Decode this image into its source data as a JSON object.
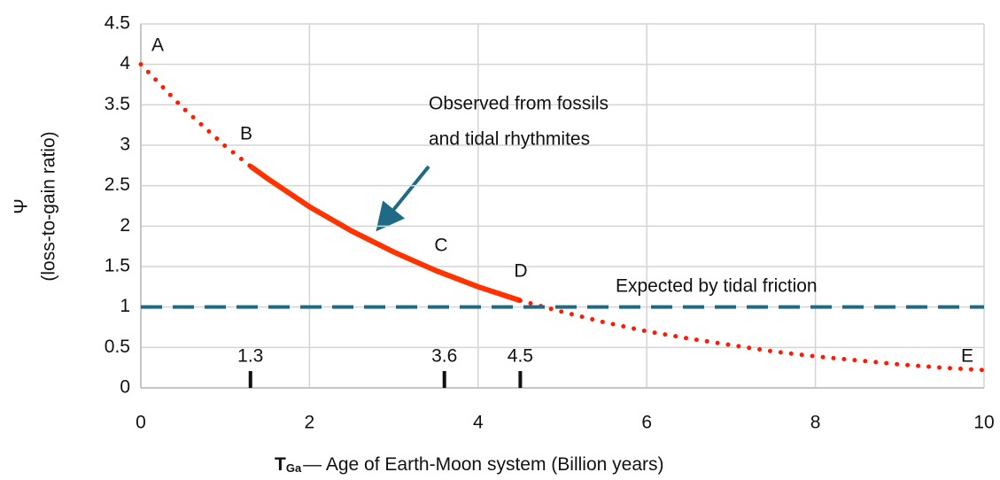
{
  "chart_data": {
    "type": "line",
    "y_label": {
      "symbol": "Ψ",
      "text": "(loss-to-gain ratio)"
    },
    "x_label": {
      "symbol": "T",
      "subscript": "Ga",
      "text": "— Age of Earth-Moon system (Billion years)"
    },
    "xlim": [
      0,
      10
    ],
    "xticks": [
      0,
      2,
      4,
      6,
      8,
      10
    ],
    "ylim": [
      0,
      4.5
    ],
    "yticks": [
      0,
      0.5,
      1,
      1.5,
      2,
      2.5,
      3,
      3.5,
      4,
      4.5
    ],
    "grid": true,
    "series": [
      {
        "color": "#ff1a00",
        "style": "dotted",
        "x": [
          0,
          0.5,
          1.0,
          1.3
        ],
        "values": [
          4,
          3.46,
          2.99,
          2.74
        ]
      },
      {
        "color": "#ff3300",
        "style": "solid",
        "x": [
          1.3,
          1.5,
          2,
          2.5,
          3,
          3.5,
          4,
          4.5
        ],
        "values": [
          2.74,
          2.59,
          2.24,
          1.94,
          1.68,
          1.45,
          1.25,
          1.08
        ]
      },
      {
        "color": "#ff1a00",
        "style": "dotted",
        "x": [
          4.5,
          5,
          5.5,
          6,
          6.5,
          7,
          7.5,
          8,
          8.5,
          9,
          9.5,
          10
        ],
        "values": [
          1.08,
          0.94,
          0.81,
          0.7,
          0.61,
          0.53,
          0.45,
          0.39,
          0.34,
          0.29,
          0.25,
          0.22
        ]
      },
      {
        "color": "#1f6b85",
        "style": "dashed",
        "x": [
          0,
          10
        ],
        "values": [
          1,
          1
        ]
      }
    ],
    "markers": [
      1.3,
      3.6,
      4.5
    ],
    "point_labels": [
      "A",
      "B",
      "C",
      "D",
      "E"
    ],
    "annotations": [
      "Observed from fossils",
      "and tidal rhythmites",
      "Expected by tidal friction"
    ]
  }
}
